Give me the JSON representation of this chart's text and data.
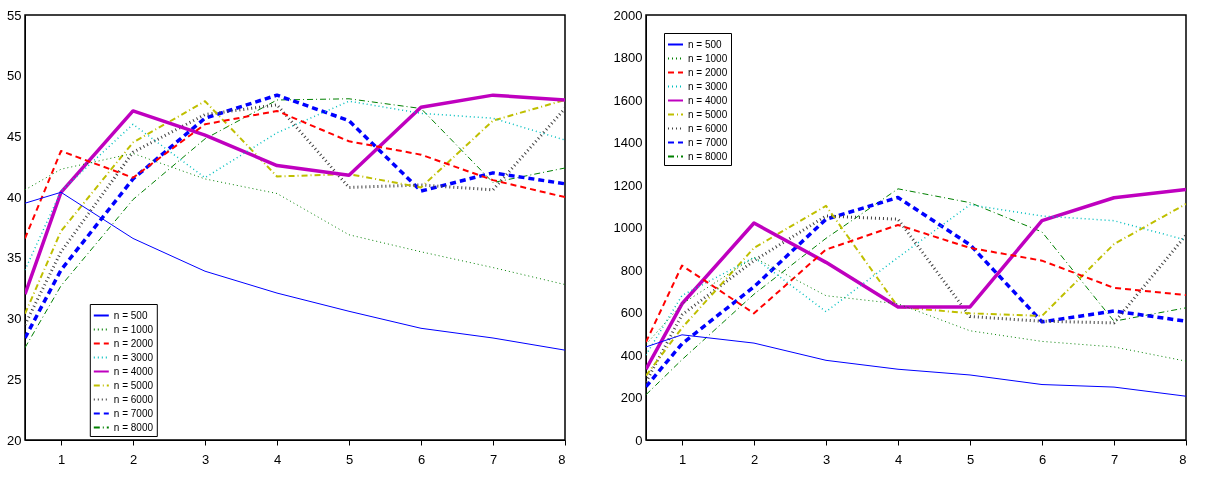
{
  "chart_data": [
    {
      "type": "line",
      "x": [
        0.5,
        1,
        2,
        3,
        4,
        5,
        6,
        7,
        8
      ],
      "xlim": [
        0.5,
        8
      ],
      "xticks": [
        1,
        2,
        3,
        4,
        5,
        6,
        7,
        8
      ],
      "ylim": [
        20,
        55
      ],
      "yticks": [
        20,
        25,
        30,
        35,
        40,
        45,
        50,
        55
      ],
      "grid": false,
      "legend": "bottom left",
      "series": [
        {
          "name": "n = 500",
          "color": "#0000ff",
          "line_style": "solid",
          "values": [
            39.5,
            40.4,
            36.6,
            33.9,
            32.1,
            30.6,
            29.2,
            28.4,
            27.4
          ]
        },
        {
          "name": "n = 1000",
          "color": "#008000",
          "line_style": "dotted",
          "values": [
            40.6,
            42.3,
            43.6,
            41.5,
            40.3,
            36.9,
            35.5,
            34.2,
            32.8
          ]
        },
        {
          "name": "n = 2000",
          "color": "#ff0000",
          "line_style": "dashed",
          "values": [
            36.6,
            43.8,
            41.6,
            46.0,
            47.1,
            44.6,
            43.5,
            41.4,
            40.0
          ]
        },
        {
          "name": "n = 3000",
          "color": "#00bfbf",
          "line_style": "dotted",
          "values": [
            34.0,
            40.5,
            46.0,
            41.6,
            45.3,
            47.9,
            46.9,
            46.5,
            44.7
          ]
        },
        {
          "name": "n = 4000",
          "color": "#bf00bf",
          "line_style": "solid",
          "values": [
            32.0,
            40.4,
            47.1,
            45.1,
            42.6,
            41.8,
            47.4,
            48.4,
            48.0
          ]
        },
        {
          "name": "n = 5000",
          "color": "#bfbf00",
          "line_style": "dashdot",
          "values": [
            30.4,
            37.2,
            44.5,
            47.9,
            41.7,
            41.9,
            40.8,
            46.3,
            48.0
          ]
        },
        {
          "name": "n = 6000",
          "color": "#404040",
          "line_style": "dotted",
          "values": [
            29.5,
            35.5,
            43.7,
            46.8,
            47.6,
            40.8,
            41.0,
            40.6,
            47.3
          ]
        },
        {
          "name": "n = 7000",
          "color": "#0000ff",
          "line_style": "dashed",
          "values": [
            28.4,
            34.0,
            41.5,
            46.5,
            48.4,
            46.3,
            40.5,
            42.0,
            41.1
          ]
        },
        {
          "name": "n = 8000",
          "color": "#008000",
          "line_style": "dashdot",
          "values": [
            27.6,
            32.7,
            39.8,
            44.8,
            48.0,
            48.1,
            47.3,
            41.2,
            42.4
          ]
        }
      ]
    },
    {
      "type": "line",
      "x": [
        0.5,
        1,
        2,
        3,
        4,
        5,
        6,
        7,
        8
      ],
      "xlim": [
        0.5,
        8
      ],
      "xticks": [
        1,
        2,
        3,
        4,
        5,
        6,
        7,
        8
      ],
      "ylim": [
        0,
        2000
      ],
      "yticks": [
        0,
        200,
        400,
        600,
        800,
        1000,
        1200,
        1400,
        1600,
        1800,
        2000
      ],
      "grid": false,
      "legend": "top left",
      "series": [
        {
          "name": "n = 500",
          "color": "#0000ff",
          "line_style": "solid",
          "values": [
            438,
            495,
            456,
            375,
            333,
            306,
            261,
            249,
            206
          ]
        },
        {
          "name": "n = 1000",
          "color": "#008000",
          "line_style": "dotted",
          "values": [
            450,
            640,
            859,
            679,
            641,
            514,
            464,
            438,
            371
          ]
        },
        {
          "name": "n = 2000",
          "color": "#ff0000",
          "line_style": "dashed",
          "values": [
            461,
            821,
            596,
            896,
            1012,
            904,
            844,
            716,
            682
          ]
        },
        {
          "name": "n = 3000",
          "color": "#00bfbf",
          "line_style": "dotted",
          "values": [
            400,
            680,
            859,
            604,
            859,
            1107,
            1054,
            1032,
            941
          ]
        },
        {
          "name": "n = 4000",
          "color": "#bf00bf",
          "line_style": "solid",
          "values": [
            333,
            641,
            1021,
            836,
            626,
            626,
            1032,
            1140,
            1179
          ]
        },
        {
          "name": "n = 5000",
          "color": "#bfbf00",
          "line_style": "dashdot",
          "values": [
            303,
            528,
            904,
            1102,
            626,
            596,
            584,
            922,
            1111
          ]
        },
        {
          "name": "n = 6000",
          "color": "#404040",
          "line_style": "dotted",
          "values": [
            273,
            589,
            844,
            1054,
            1039,
            581,
            559,
            551,
            964
          ]
        },
        {
          "name": "n = 7000",
          "color": "#0000ff",
          "line_style": "dashed",
          "values": [
            251,
            453,
            721,
            1039,
            1141,
            919,
            556,
            607,
            559
          ]
        },
        {
          "name": "n = 8000",
          "color": "#008000",
          "line_style": "dashdot",
          "values": [
            213,
            378,
            686,
            949,
            1182,
            1117,
            979,
            559,
            622
          ]
        }
      ]
    }
  ]
}
